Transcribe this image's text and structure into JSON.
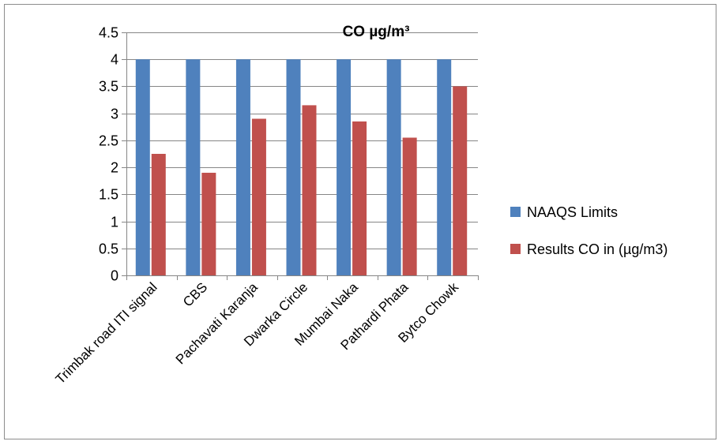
{
  "chart_data": {
    "type": "bar",
    "title": "CO µg/m³",
    "categories": [
      "Trimbak road ITI signal",
      "CBS",
      "Pachavati Karanja",
      "Dwarka Circle",
      "Mumbai Naka",
      "Pathardi Phata",
      "Bytco Chowk"
    ],
    "series": [
      {
        "name": "NAAQS Limits",
        "values": [
          4,
          4,
          4,
          4,
          4,
          4,
          4
        ],
        "color": "#4F81BD"
      },
      {
        "name": "Results CO in (µg/m3)",
        "values": [
          2.25,
          1.9,
          2.9,
          3.15,
          2.85,
          2.55,
          3.5
        ],
        "color": "#C0504D"
      }
    ],
    "ylim": [
      0,
      4.5
    ],
    "yticks": [
      "0",
      "0.5",
      "1",
      "1.5",
      "2",
      "2.5",
      "3",
      "3.5",
      "4",
      "4.5"
    ],
    "grid": true,
    "legend_position": "right",
    "xlabel": "",
    "ylabel": ""
  }
}
